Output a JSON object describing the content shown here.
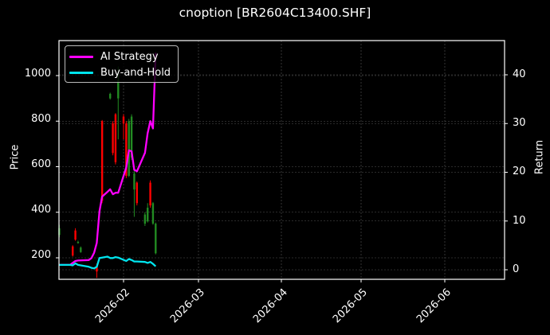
{
  "title": "cnoption [BR2604C13400.SHF]",
  "legend": [
    {
      "label": "AI Strategy",
      "color": "#ff00ff"
    },
    {
      "label": "Buy-and-Hold",
      "color": "#00e5ee"
    }
  ],
  "axes": {
    "left_label": "Price",
    "right_label": "Return",
    "left_ticks": [
      "200",
      "400",
      "600",
      "800",
      "1000"
    ],
    "right_ticks": [
      "0",
      "10",
      "20",
      "30",
      "40"
    ],
    "x_ticks": [
      "2026-02",
      "2026-03",
      "2026-04",
      "2026-05",
      "2026-06"
    ]
  },
  "colors": {
    "background": "#000000",
    "up_candle": "#228b22",
    "down_candle": "#ff0000",
    "grid": "#555555",
    "frame": "#ffffff"
  },
  "chart_data": {
    "type": "line",
    "title": "cnoption [BR2604C13400.SHF]",
    "xlabel": "",
    "ylabel": "Price",
    "ylabel_right": "Return",
    "xlim": [
      "2026-01-08",
      "2026-06-08"
    ],
    "ylim": [
      105,
      1150
    ],
    "ylim_right": [
      -1.9,
      47
    ],
    "grid": true,
    "legend_position": "upper left",
    "x_tick_labels": [
      "2026-02",
      "2026-03",
      "2026-04",
      "2026-05",
      "2026-06"
    ],
    "y_tick_labels": [
      200,
      400,
      600,
      800,
      1000
    ],
    "y_right_tick_labels": [
      0,
      10,
      20,
      30,
      40
    ],
    "candlesticks": [
      {
        "date": "2026-01-08",
        "open": 300,
        "close": 330,
        "high": 345,
        "low": 290,
        "dir": "up"
      },
      {
        "date": "2026-01-13",
        "open": 250,
        "close": 210,
        "high": 255,
        "low": 205,
        "dir": "down"
      },
      {
        "date": "2026-01-14",
        "open": 320,
        "close": 280,
        "high": 330,
        "low": 275,
        "dir": "down"
      },
      {
        "date": "2026-01-15",
        "open": 265,
        "close": 270,
        "high": 275,
        "low": 262,
        "dir": "up"
      },
      {
        "date": "2026-01-16",
        "open": 225,
        "close": 245,
        "high": 250,
        "low": 222,
        "dir": "up"
      },
      {
        "date": "2026-01-22",
        "open": 160,
        "close": 140,
        "high": 175,
        "low": 112,
        "dir": "down"
      },
      {
        "date": "2026-01-24",
        "open": 800,
        "close": 450,
        "high": 805,
        "low": 440,
        "dir": "down"
      },
      {
        "date": "2026-01-27",
        "open": 900,
        "close": 920,
        "high": 925,
        "low": 895,
        "dir": "up"
      },
      {
        "date": "2026-01-28",
        "open": 790,
        "close": 660,
        "high": 800,
        "low": 650,
        "dir": "down"
      },
      {
        "date": "2026-01-29",
        "open": 830,
        "close": 620,
        "high": 835,
        "low": 610,
        "dir": "down"
      },
      {
        "date": "2026-01-30",
        "open": 900,
        "close": 980,
        "high": 1040,
        "low": 720,
        "dir": "up"
      },
      {
        "date": "2026-02-01",
        "open": 820,
        "close": 790,
        "high": 830,
        "low": 720,
        "dir": "down"
      },
      {
        "date": "2026-02-02",
        "open": 790,
        "close": 560,
        "high": 800,
        "low": 550,
        "dir": "down"
      },
      {
        "date": "2026-02-03",
        "open": 560,
        "close": 800,
        "high": 810,
        "low": 555,
        "dir": "up"
      },
      {
        "date": "2026-02-04",
        "open": 640,
        "close": 820,
        "high": 830,
        "low": 630,
        "dir": "up"
      },
      {
        "date": "2026-02-05",
        "open": 500,
        "close": 570,
        "high": 600,
        "low": 380,
        "dir": "up"
      },
      {
        "date": "2026-02-06",
        "open": 530,
        "close": 440,
        "high": 535,
        "low": 430,
        "dir": "down"
      },
      {
        "date": "2026-02-09",
        "open": 350,
        "close": 390,
        "high": 400,
        "low": 340,
        "dir": "up"
      },
      {
        "date": "2026-02-10",
        "open": 360,
        "close": 420,
        "high": 440,
        "low": 355,
        "dir": "up"
      },
      {
        "date": "2026-02-11",
        "open": 530,
        "close": 430,
        "high": 540,
        "low": 420,
        "dir": "down"
      },
      {
        "date": "2026-02-12",
        "open": 350,
        "close": 440,
        "high": 445,
        "low": 345,
        "dir": "up"
      },
      {
        "date": "2026-02-13",
        "open": 220,
        "close": 350,
        "high": 355,
        "low": 215,
        "dir": "up"
      }
    ],
    "series": [
      {
        "name": "AI Strategy",
        "axis": "right",
        "color": "#ff00ff",
        "x": [
          "2026-01-08",
          "2026-01-12",
          "2026-01-13",
          "2026-01-14",
          "2026-01-15",
          "2026-01-19",
          "2026-01-20",
          "2026-01-21",
          "2026-01-22",
          "2026-01-23",
          "2026-01-24",
          "2026-01-26",
          "2026-01-27",
          "2026-01-28",
          "2026-01-29",
          "2026-01-30",
          "2026-02-02",
          "2026-02-03",
          "2026-02-04",
          "2026-02-05",
          "2026-02-06",
          "2026-02-09",
          "2026-02-10",
          "2026-02-11",
          "2026-02-12",
          "2026-02-13"
        ],
        "values": [
          1.0,
          1.0,
          1.4,
          1.8,
          1.9,
          2.0,
          2.4,
          3.5,
          5.5,
          12.0,
          15.0,
          16.0,
          16.5,
          15.5,
          15.8,
          15.8,
          21.0,
          24.5,
          24.3,
          20.5,
          20.2,
          24.0,
          28.0,
          30.5,
          29.0,
          44.5
        ]
      },
      {
        "name": "Buy-and-Hold",
        "axis": "right",
        "color": "#00e5ee",
        "x": [
          "2026-01-08",
          "2026-01-12",
          "2026-01-13",
          "2026-01-14",
          "2026-01-15",
          "2026-01-19",
          "2026-01-20",
          "2026-01-21",
          "2026-01-22",
          "2026-01-23",
          "2026-01-24",
          "2026-01-26",
          "2026-01-27",
          "2026-01-28",
          "2026-01-29",
          "2026-01-30",
          "2026-02-02",
          "2026-02-03",
          "2026-02-04",
          "2026-02-05",
          "2026-02-06",
          "2026-02-09",
          "2026-02-10",
          "2026-02-11",
          "2026-02-12",
          "2026-02-13"
        ],
        "values": [
          1.0,
          1.0,
          0.9,
          1.3,
          1.0,
          0.6,
          0.4,
          0.3,
          0.6,
          2.4,
          2.5,
          2.7,
          2.4,
          2.4,
          2.6,
          2.5,
          1.8,
          2.2,
          2.0,
          1.7,
          1.7,
          1.6,
          1.4,
          1.6,
          1.2,
          0.7
        ]
      }
    ]
  }
}
